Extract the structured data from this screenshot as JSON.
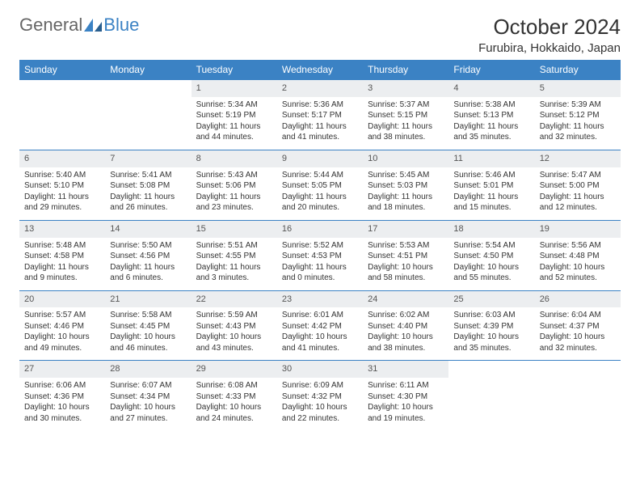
{
  "brand": {
    "part1": "General",
    "part2": "Blue"
  },
  "title": "October 2024",
  "location": "Furubira, Hokkaido, Japan",
  "colors": {
    "accent": "#3b82c4",
    "header_bg": "#3b82c4",
    "header_text": "#ffffff",
    "daynum_bg": "#eceef0",
    "border": "#3b82c4",
    "text": "#333333",
    "logo_gray": "#666666"
  },
  "day_labels": [
    "Sunday",
    "Monday",
    "Tuesday",
    "Wednesday",
    "Thursday",
    "Friday",
    "Saturday"
  ],
  "weeks": [
    [
      null,
      null,
      {
        "n": "1",
        "sr": "5:34 AM",
        "ss": "5:19 PM",
        "dl": "11 hours and 44 minutes."
      },
      {
        "n": "2",
        "sr": "5:36 AM",
        "ss": "5:17 PM",
        "dl": "11 hours and 41 minutes."
      },
      {
        "n": "3",
        "sr": "5:37 AM",
        "ss": "5:15 PM",
        "dl": "11 hours and 38 minutes."
      },
      {
        "n": "4",
        "sr": "5:38 AM",
        "ss": "5:13 PM",
        "dl": "11 hours and 35 minutes."
      },
      {
        "n": "5",
        "sr": "5:39 AM",
        "ss": "5:12 PM",
        "dl": "11 hours and 32 minutes."
      }
    ],
    [
      {
        "n": "6",
        "sr": "5:40 AM",
        "ss": "5:10 PM",
        "dl": "11 hours and 29 minutes."
      },
      {
        "n": "7",
        "sr": "5:41 AM",
        "ss": "5:08 PM",
        "dl": "11 hours and 26 minutes."
      },
      {
        "n": "8",
        "sr": "5:43 AM",
        "ss": "5:06 PM",
        "dl": "11 hours and 23 minutes."
      },
      {
        "n": "9",
        "sr": "5:44 AM",
        "ss": "5:05 PM",
        "dl": "11 hours and 20 minutes."
      },
      {
        "n": "10",
        "sr": "5:45 AM",
        "ss": "5:03 PM",
        "dl": "11 hours and 18 minutes."
      },
      {
        "n": "11",
        "sr": "5:46 AM",
        "ss": "5:01 PM",
        "dl": "11 hours and 15 minutes."
      },
      {
        "n": "12",
        "sr": "5:47 AM",
        "ss": "5:00 PM",
        "dl": "11 hours and 12 minutes."
      }
    ],
    [
      {
        "n": "13",
        "sr": "5:48 AM",
        "ss": "4:58 PM",
        "dl": "11 hours and 9 minutes."
      },
      {
        "n": "14",
        "sr": "5:50 AM",
        "ss": "4:56 PM",
        "dl": "11 hours and 6 minutes."
      },
      {
        "n": "15",
        "sr": "5:51 AM",
        "ss": "4:55 PM",
        "dl": "11 hours and 3 minutes."
      },
      {
        "n": "16",
        "sr": "5:52 AM",
        "ss": "4:53 PM",
        "dl": "11 hours and 0 minutes."
      },
      {
        "n": "17",
        "sr": "5:53 AM",
        "ss": "4:51 PM",
        "dl": "10 hours and 58 minutes."
      },
      {
        "n": "18",
        "sr": "5:54 AM",
        "ss": "4:50 PM",
        "dl": "10 hours and 55 minutes."
      },
      {
        "n": "19",
        "sr": "5:56 AM",
        "ss": "4:48 PM",
        "dl": "10 hours and 52 minutes."
      }
    ],
    [
      {
        "n": "20",
        "sr": "5:57 AM",
        "ss": "4:46 PM",
        "dl": "10 hours and 49 minutes."
      },
      {
        "n": "21",
        "sr": "5:58 AM",
        "ss": "4:45 PM",
        "dl": "10 hours and 46 minutes."
      },
      {
        "n": "22",
        "sr": "5:59 AM",
        "ss": "4:43 PM",
        "dl": "10 hours and 43 minutes."
      },
      {
        "n": "23",
        "sr": "6:01 AM",
        "ss": "4:42 PM",
        "dl": "10 hours and 41 minutes."
      },
      {
        "n": "24",
        "sr": "6:02 AM",
        "ss": "4:40 PM",
        "dl": "10 hours and 38 minutes."
      },
      {
        "n": "25",
        "sr": "6:03 AM",
        "ss": "4:39 PM",
        "dl": "10 hours and 35 minutes."
      },
      {
        "n": "26",
        "sr": "6:04 AM",
        "ss": "4:37 PM",
        "dl": "10 hours and 32 minutes."
      }
    ],
    [
      {
        "n": "27",
        "sr": "6:06 AM",
        "ss": "4:36 PM",
        "dl": "10 hours and 30 minutes."
      },
      {
        "n": "28",
        "sr": "6:07 AM",
        "ss": "4:34 PM",
        "dl": "10 hours and 27 minutes."
      },
      {
        "n": "29",
        "sr": "6:08 AM",
        "ss": "4:33 PM",
        "dl": "10 hours and 24 minutes."
      },
      {
        "n": "30",
        "sr": "6:09 AM",
        "ss": "4:32 PM",
        "dl": "10 hours and 22 minutes."
      },
      {
        "n": "31",
        "sr": "6:11 AM",
        "ss": "4:30 PM",
        "dl": "10 hours and 19 minutes."
      },
      null,
      null
    ]
  ],
  "labels": {
    "sunrise": "Sunrise:",
    "sunset": "Sunset:",
    "daylight": "Daylight:"
  }
}
